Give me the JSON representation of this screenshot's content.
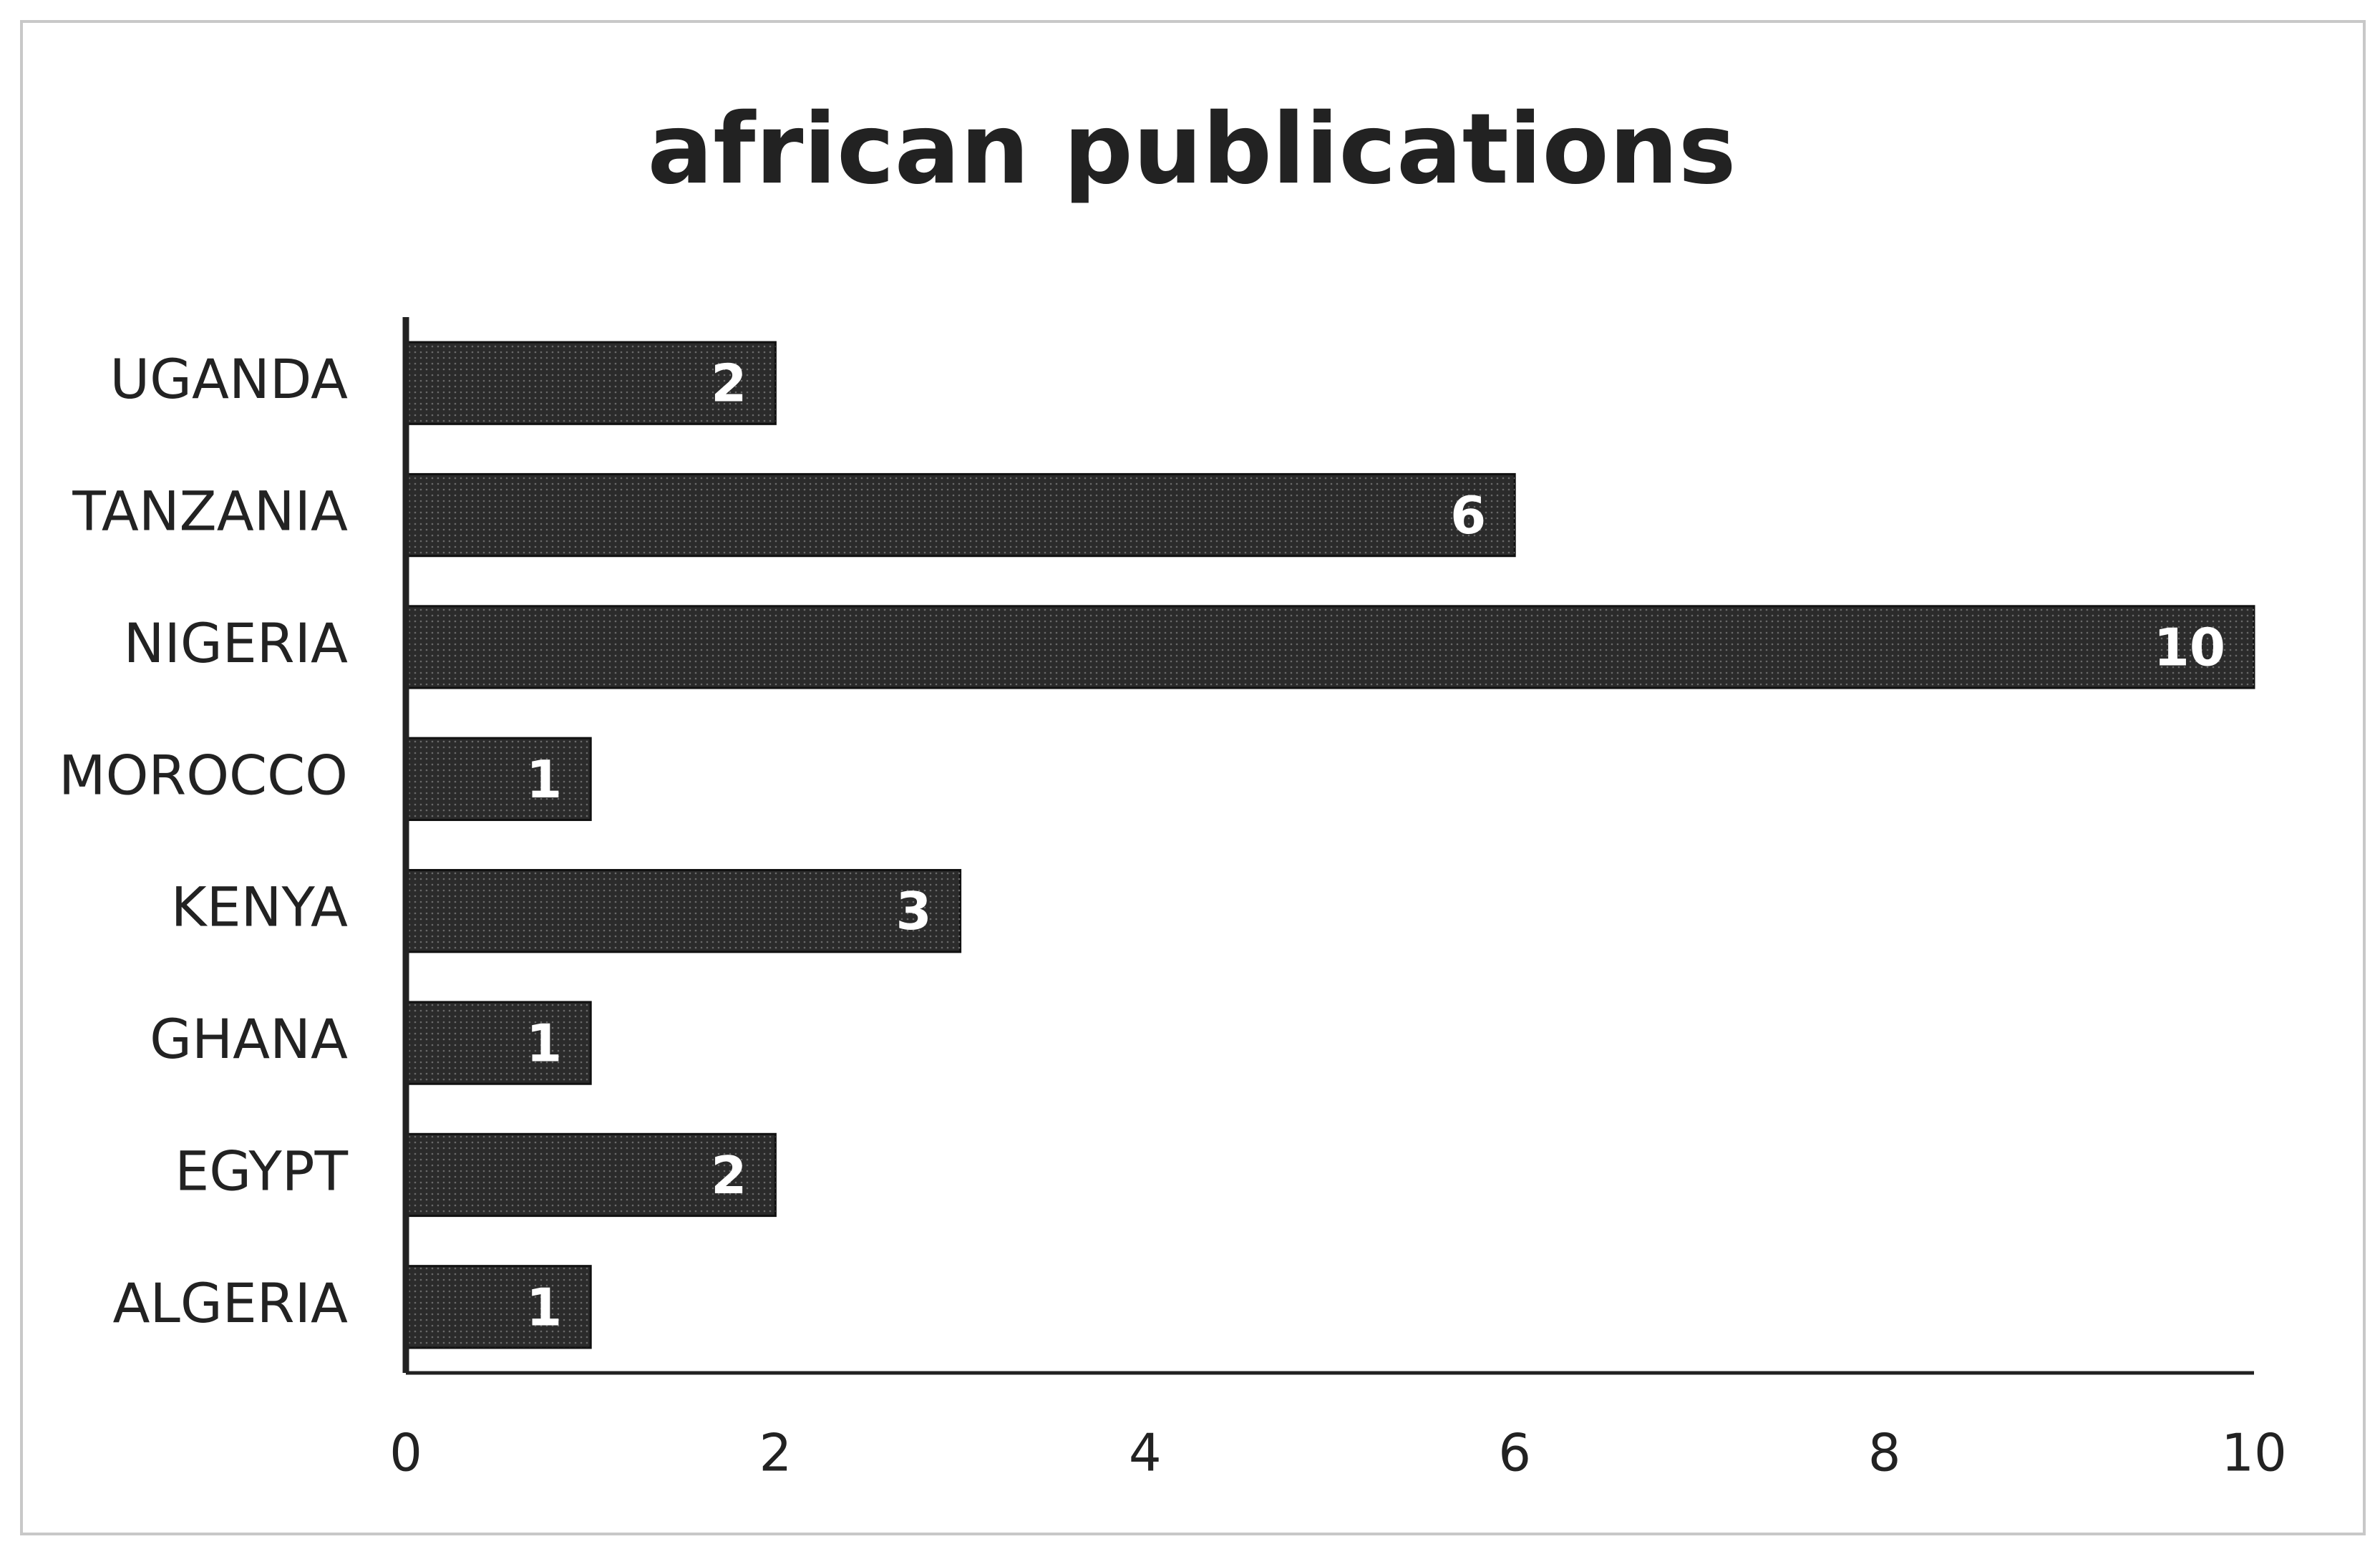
{
  "chart_data": {
    "type": "bar",
    "orientation": "horizontal",
    "title": "african publications",
    "categories": [
      "ALGERIA",
      "EGYPT",
      "GHANA",
      "KENYA",
      "MOROCCO",
      "NIGERIA",
      "TANZANIA",
      "UGANDA"
    ],
    "values": [
      1,
      2,
      1,
      3,
      1,
      10,
      6,
      2
    ],
    "color": "#2b2b2b",
    "xlim": [
      0,
      10
    ],
    "xticks": [
      0,
      2,
      4,
      6,
      8,
      10
    ],
    "grid": false,
    "data_labels": true
  }
}
